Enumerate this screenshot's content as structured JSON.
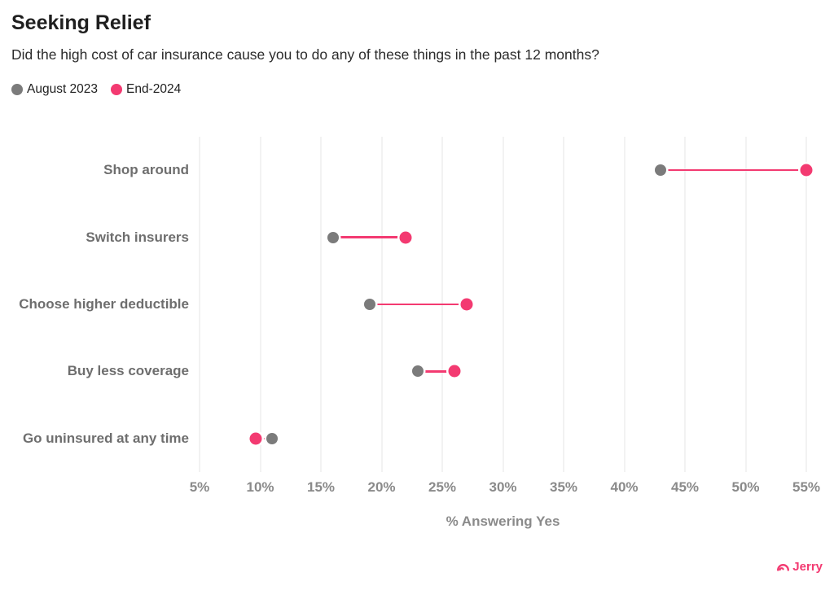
{
  "header": {
    "title": "Seeking Relief",
    "subtitle": "Did the high cost of car insurance cause you to do any of these things in the past 12 months?"
  },
  "legend": [
    {
      "label": "August 2023",
      "color": "#7b7b7b"
    },
    {
      "label": "End-2024",
      "color": "#f33a71"
    }
  ],
  "chart_data": {
    "type": "scatter",
    "variant": "dumbbell",
    "orientation": "horizontal",
    "categories": [
      "Shop around",
      "Switch insurers",
      "Choose higher deductible",
      "Buy less coverage",
      "Go uninsured at any time"
    ],
    "series": [
      {
        "name": "August 2023",
        "color": "#7b7b7b",
        "values": [
          43,
          16,
          19,
          23,
          11
        ]
      },
      {
        "name": "End-2024",
        "color": "#f33a71",
        "values": [
          55,
          22,
          27,
          26,
          9.6
        ]
      }
    ],
    "connector_color": "#f33a71",
    "xlabel": "% Answering Yes",
    "ylabel": "",
    "xlim": [
      5,
      55
    ],
    "x_tick_values": [
      5,
      10,
      15,
      20,
      25,
      30,
      35,
      40,
      45,
      50,
      55
    ],
    "x_tick_labels": [
      "5%",
      "10%",
      "15%",
      "20%",
      "25%",
      "30%",
      "35%",
      "40%",
      "45%",
      "50%",
      "55%"
    ],
    "grid": "vertical-only",
    "grid_color": "#f2f2f2",
    "legend_position": "top-left"
  },
  "footer": {
    "brand": "Jerry",
    "brand_color": "#f33a71"
  }
}
